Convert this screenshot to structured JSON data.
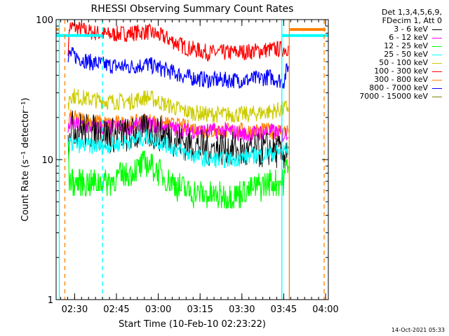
{
  "chart_data": {
    "type": "line",
    "title": "RHESSI Observing Summary Count Rates",
    "xlabel": "Start Time (10-Feb-10 02:23:22)",
    "ylabel": "Count Rate (s⁻¹ detector⁻¹)",
    "y_scale": "log",
    "ylim": [
      1,
      100
    ],
    "y_ticks": [
      "1",
      "10",
      "100"
    ],
    "xlim": [
      "02:23:22",
      "04:01:00"
    ],
    "x_ticks": [
      "02:30",
      "02:45",
      "03:00",
      "03:15",
      "03:30",
      "03:45",
      "04:00"
    ],
    "legend_header": [
      "Det 1,3,4,5,6,9,",
      "FDecim 1, Att 0"
    ],
    "series": [
      {
        "name": "3 - 6 keV",
        "color": "#000000",
        "x": [
          "02:28",
          "02:35",
          "02:42",
          "02:50",
          "02:56",
          "03:02",
          "03:10",
          "03:18",
          "03:25",
          "03:32",
          "03:40",
          "03:45",
          "03:47"
        ],
        "y": [
          17,
          16,
          15,
          15,
          16,
          15,
          13,
          12,
          12,
          11,
          12,
          11,
          13
        ]
      },
      {
        "name": "6 - 12 keV",
        "color": "#ff00ff",
        "x": [
          "02:28",
          "02:35",
          "02:42",
          "02:50",
          "02:56",
          "03:02",
          "03:10",
          "03:18",
          "03:25",
          "03:32",
          "03:40",
          "03:45",
          "03:47"
        ],
        "y": [
          18,
          17,
          17,
          17,
          18,
          17,
          16,
          16,
          16,
          15,
          16,
          15,
          16
        ]
      },
      {
        "name": "12 - 25 keV",
        "color": "#00ff00",
        "x": [
          "02:28",
          "02:35",
          "02:42",
          "02:50",
          "02:56",
          "03:02",
          "03:10",
          "03:18",
          "03:25",
          "03:32",
          "03:40",
          "03:45",
          "03:47"
        ],
        "y": [
          7,
          6.8,
          7,
          8,
          9.5,
          7.5,
          6,
          5.5,
          5.5,
          6,
          6.8,
          7,
          11
        ]
      },
      {
        "name": "25 - 50 keV",
        "color": "#00ffff",
        "x": [
          "02:28",
          "02:35",
          "02:42",
          "02:50",
          "02:56",
          "03:02",
          "03:10",
          "03:18",
          "03:25",
          "03:32",
          "03:40",
          "03:45",
          "03:47"
        ],
        "y": [
          13,
          12.5,
          12.5,
          13.5,
          14.5,
          13,
          11,
          10,
          10,
          10.5,
          11,
          11.5,
          12
        ]
      },
      {
        "name": "50 - 100 keV",
        "color": "#cccc00",
        "x": [
          "02:28",
          "02:35",
          "02:42",
          "02:50",
          "02:56",
          "03:02",
          "03:10",
          "03:18",
          "03:25",
          "03:32",
          "03:40",
          "03:45",
          "03:47"
        ],
        "y": [
          29,
          27,
          26,
          26,
          28,
          25,
          22,
          21,
          21,
          21,
          22,
          23,
          24
        ]
      },
      {
        "name": "100 - 300 keV",
        "color": "#ff0000",
        "x": [
          "02:28",
          "02:35",
          "02:42",
          "02:50",
          "02:56",
          "03:02",
          "03:10",
          "03:18",
          "03:25",
          "03:32",
          "03:40",
          "03:45",
          "03:47"
        ],
        "y": [
          90,
          82,
          78,
          80,
          82,
          75,
          63,
          58,
          58,
          59,
          61,
          62,
          63
        ]
      },
      {
        "name": "300 - 800 keV",
        "color": "#ff8000",
        "x": [
          "02:28",
          "02:35",
          "02:42",
          "02:50",
          "02:56",
          "03:02",
          "03:10",
          "03:18",
          "03:25",
          "03:32",
          "03:40",
          "03:45",
          "03:47"
        ],
        "y": [
          20,
          19,
          18,
          18,
          19,
          18,
          17,
          16,
          16,
          16,
          16,
          16,
          16
        ]
      },
      {
        "name": "800 - 7000 keV",
        "color": "#0000ff",
        "x": [
          "02:28",
          "02:35",
          "02:42",
          "02:50",
          "02:56",
          "03:02",
          "03:10",
          "03:18",
          "03:25",
          "03:32",
          "03:40",
          "03:45",
          "03:47"
        ],
        "y": [
          57,
          50,
          47,
          46,
          48,
          44,
          39,
          37,
          37,
          37,
          39,
          36,
          50
        ]
      },
      {
        "name": "7000 - 15000 keV",
        "color": "#808000",
        "x": [],
        "y": []
      }
    ],
    "vertical_lines": [
      {
        "x": "02:24:30",
        "color": "#00ffff",
        "style": "solid"
      },
      {
        "x": "02:26:30",
        "color": "#ff8000",
        "style": "dashed"
      },
      {
        "x": "02:40:00",
        "color": "#00ffff",
        "style": "dashed"
      },
      {
        "x": "03:44:20",
        "color": "#00ffff",
        "style": "solid"
      },
      {
        "x": "03:47:00",
        "color": "#ff8000",
        "style": "solid"
      },
      {
        "x": "03:59:30",
        "color": "#ff8000",
        "style": "dashed"
      }
    ],
    "flag_bars": [
      {
        "color": "#00ffff",
        "y": 77,
        "from": "02:23:22",
        "to": "02:40:00"
      },
      {
        "color": "#ff8000",
        "y": 85,
        "from": "02:23:22",
        "to": "02:24:20"
      },
      {
        "color": "#00ffff",
        "y": 77,
        "from": "03:44:20",
        "to": "04:01:00"
      },
      {
        "color": "#ff8000",
        "y": 85,
        "from": "03:47:00",
        "to": "04:00:00"
      }
    ]
  },
  "footer": {
    "timestamp": "14-Oct-2021 05:33"
  }
}
